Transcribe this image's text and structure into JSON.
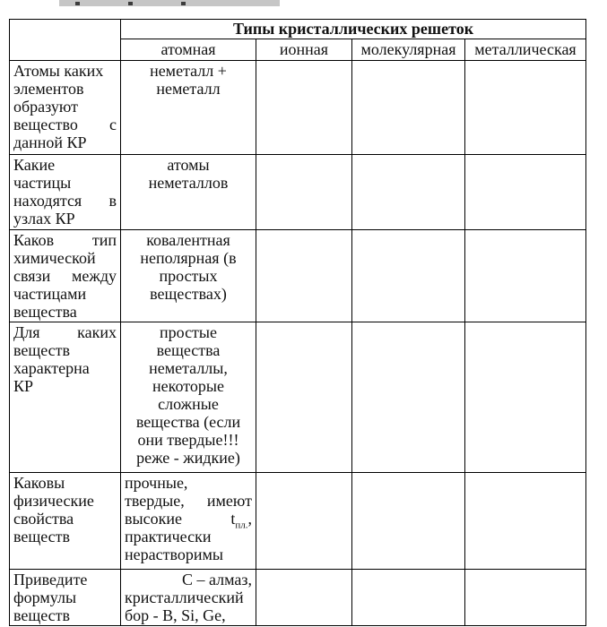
{
  "table": {
    "title": "Типы кристаллических решеток",
    "columns": [
      "атомная",
      "ионная",
      "молекулярная",
      "металлическая"
    ],
    "rows": [
      {
        "question": [
          {
            "a": "l",
            "s": [
              {
                "t": "Атомы каких"
              }
            ]
          },
          {
            "a": "l",
            "s": [
              {
                "t": "элементов"
              }
            ]
          },
          {
            "a": "l",
            "s": [
              {
                "t": "образуют"
              }
            ]
          },
          {
            "a": "sb",
            "s": [
              {
                "t": "вещество"
              },
              {
                "t": "с"
              }
            ]
          },
          {
            "a": "l",
            "s": [
              {
                "t": "данной КР"
              }
            ]
          }
        ],
        "answers": {
          "atomic": [
            {
              "a": "c",
              "s": [
                {
                  "t": "неметалл +"
                }
              ]
            },
            {
              "a": "c",
              "s": [
                {
                  "t": "неметалл"
                }
              ]
            }
          ],
          "ionic": [],
          "molecular": [],
          "metallic": []
        }
      },
      {
        "question": [
          {
            "a": "l",
            "s": [
              {
                "t": "Какие"
              }
            ]
          },
          {
            "a": "l",
            "s": [
              {
                "t": "частицы"
              }
            ]
          },
          {
            "a": "sb",
            "s": [
              {
                "t": "находятся"
              },
              {
                "t": "в"
              }
            ]
          },
          {
            "a": "l",
            "s": [
              {
                "t": "узлах КР"
              }
            ]
          }
        ],
        "answers": {
          "atomic": [
            {
              "a": "c",
              "s": [
                {
                  "t": "атомы"
                }
              ]
            },
            {
              "a": "c",
              "s": [
                {
                  "t": "неметаллов"
                }
              ]
            }
          ],
          "ionic": [],
          "molecular": [],
          "metallic": []
        }
      },
      {
        "question": [
          {
            "a": "sb",
            "s": [
              {
                "t": "Каков"
              },
              {
                "t": "тип"
              }
            ]
          },
          {
            "a": "l",
            "s": [
              {
                "t": "химической"
              }
            ]
          },
          {
            "a": "sb",
            "s": [
              {
                "t": "связи"
              },
              {
                "t": "между"
              }
            ]
          },
          {
            "a": "l",
            "s": [
              {
                "t": "частицами"
              }
            ]
          },
          {
            "a": "l",
            "s": [
              {
                "t": "вещества"
              }
            ]
          }
        ],
        "answers": {
          "atomic": [
            {
              "a": "c",
              "s": [
                {
                  "t": "ковалентная"
                }
              ]
            },
            {
              "a": "c",
              "s": [
                {
                  "t": "неполярная (в"
                }
              ]
            },
            {
              "a": "c",
              "s": [
                {
                  "t": "простых"
                }
              ]
            },
            {
              "a": "c",
              "s": [
                {
                  "t": "веществах)"
                }
              ]
            }
          ],
          "ionic": [],
          "molecular": [],
          "metallic": []
        }
      },
      {
        "question": [
          {
            "a": "sb",
            "s": [
              {
                "t": "Для"
              },
              {
                "t": "каких"
              }
            ]
          },
          {
            "a": "l",
            "s": [
              {
                "t": "веществ"
              }
            ]
          },
          {
            "a": "l",
            "s": [
              {
                "t": "характерна"
              }
            ]
          },
          {
            "a": "l",
            "s": [
              {
                "t": "КР"
              }
            ]
          }
        ],
        "answers": {
          "atomic": [
            {
              "a": "c",
              "s": [
                {
                  "t": "простые"
                }
              ]
            },
            {
              "a": "c",
              "s": [
                {
                  "t": "вещества"
                }
              ]
            },
            {
              "a": "c",
              "s": [
                {
                  "t": "неметаллы,"
                }
              ]
            },
            {
              "a": "c",
              "s": [
                {
                  "t": "некоторые"
                }
              ]
            },
            {
              "a": "c",
              "s": [
                {
                  "t": "сложные"
                }
              ]
            },
            {
              "a": "c",
              "s": [
                {
                  "t": "вещества (если"
                }
              ]
            },
            {
              "a": "c",
              "s": [
                {
                  "t": "они твердые!!!"
                }
              ]
            },
            {
              "a": "c",
              "s": [
                {
                  "t": "реже - жидкие)"
                }
              ]
            }
          ],
          "ionic": [],
          "molecular": [],
          "metallic": []
        }
      },
      {
        "question": [
          {
            "a": "l",
            "s": [
              {
                "t": "Каковы"
              }
            ]
          },
          {
            "a": "l",
            "s": [
              {
                "t": "физические"
              }
            ]
          },
          {
            "a": "l",
            "s": [
              {
                "t": "свойства"
              }
            ]
          },
          {
            "a": "l",
            "s": [
              {
                "t": "веществ"
              }
            ]
          }
        ],
        "answers": {
          "atomic": [
            {
              "a": "l",
              "s": [
                {
                  "t": "прочные,"
                }
              ]
            },
            {
              "a": "sb",
              "s": [
                {
                  "t": "твердые,"
                },
                {
                  "t": "имеют"
                }
              ]
            },
            {
              "a": "sb",
              "s": [
                {
                  "t": "высокие"
                },
                {
                  "t": "t"
                },
                {
                  "t": "пл.",
                  "sub": true
                },
                {
                  "t": ","
                }
              ]
            },
            {
              "a": "l",
              "s": [
                {
                  "t": "практически"
                }
              ]
            },
            {
              "a": "l",
              "s": [
                {
                  "t": "нерастворимы"
                }
              ]
            }
          ],
          "ionic": [],
          "molecular": [],
          "metallic": []
        }
      },
      {
        "question": [
          {
            "a": "l",
            "s": [
              {
                "t": "Приведите"
              }
            ]
          },
          {
            "a": "l",
            "s": [
              {
                "t": "формулы"
              }
            ]
          },
          {
            "a": "l",
            "s": [
              {
                "t": "веществ"
              }
            ]
          }
        ],
        "answers": {
          "atomic": [
            {
              "a": "r",
              "s": [
                {
                  "t": "С – алмаз,"
                }
              ]
            },
            {
              "a": "l",
              "s": [
                {
                  "t": "кристаллический"
                }
              ]
            },
            {
              "a": "l",
              "s": [
                {
                  "t": "бор - B, Si, Ge,"
                }
              ]
            }
          ],
          "ionic": [],
          "molecular": [],
          "metallic": []
        }
      }
    ]
  }
}
